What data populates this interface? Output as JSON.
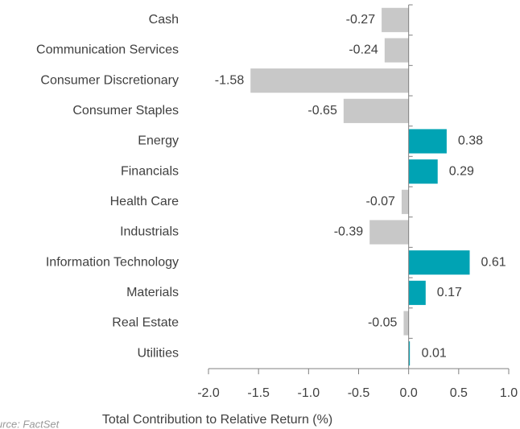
{
  "chart_data": {
    "type": "bar",
    "orientation": "horizontal",
    "categories": [
      "Cash",
      "Communication Services",
      "Consumer Discretionary",
      "Consumer Staples",
      "Energy",
      "Financials",
      "Health Care",
      "Industrials",
      "Information Technology",
      "Materials",
      "Real Estate",
      "Utilities"
    ],
    "values": [
      -0.27,
      -0.24,
      -1.58,
      -0.65,
      0.38,
      0.29,
      -0.07,
      -0.39,
      0.61,
      0.17,
      -0.05,
      0.01
    ],
    "color_positive": "#00a3b4",
    "color_negative": "#c8c8c8",
    "xlabel": "Total Contribution to Relative Return (%)",
    "xlim": [
      -2.0,
      1.0
    ],
    "xticks": [
      {
        "value": -2.0,
        "label": "-2.0"
      },
      {
        "value": -1.5,
        "label": "-1.5"
      },
      {
        "value": -1.0,
        "label": "-1.0"
      },
      {
        "value": -0.5,
        "label": "-0.5"
      },
      {
        "value": 0,
        "label": "0.0"
      },
      {
        "value": 0.5,
        "label": "0.5"
      },
      {
        "value": 1.0,
        "label": "1.0"
      }
    ],
    "grid": false,
    "source": "Source: FactSet"
  }
}
